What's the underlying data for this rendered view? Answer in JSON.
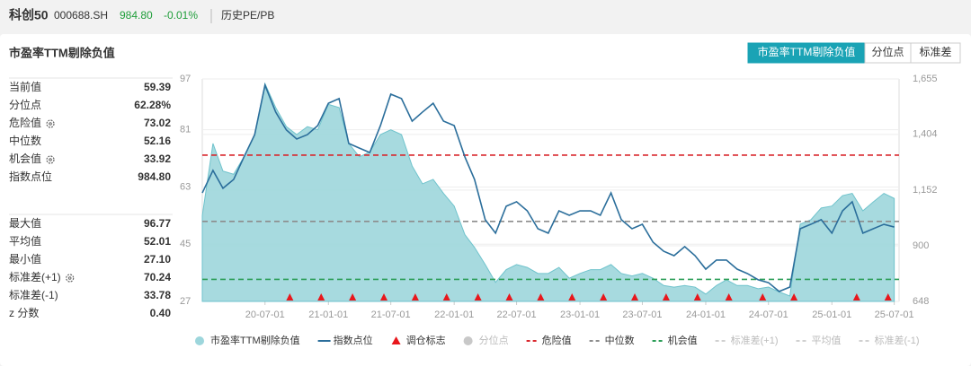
{
  "header": {
    "name": "科创50",
    "code": "000688.SH",
    "price": "984.80",
    "change": "-0.01%",
    "section": "历史PE/PB"
  },
  "card_title": "市盈率TTM剔除负值",
  "tabs": [
    {
      "label": "市盈率TTM剔除负值",
      "active": true
    },
    {
      "label": "分位点",
      "active": false
    },
    {
      "label": "标准差",
      "active": false
    }
  ],
  "stats": [
    [
      {
        "name": "当前值",
        "value": 59.39
      },
      {
        "name": "分位点",
        "value": 62.28,
        "value_label": "62.28%"
      },
      {
        "name": "危险值",
        "value": 73.02,
        "gear": true,
        "color": "#d9262c"
      },
      {
        "name": "中位数",
        "value": 52.16,
        "color": "#8c8c8c"
      },
      {
        "name": "机会值",
        "value": 33.92,
        "gear": true,
        "color": "#2a9d56"
      },
      {
        "name": "指数点位",
        "value": 984.8,
        "value_label": "984.80"
      }
    ],
    [
      {
        "name": "最大值",
        "value": 96.77
      },
      {
        "name": "平均值",
        "value": 52.01
      },
      {
        "name": "最小值",
        "value": 27.1,
        "value_label": "27.10"
      },
      {
        "name": "标准差(+1)",
        "value": 70.24,
        "gear": true
      },
      {
        "name": "标准差(-1)",
        "value": 33.78
      },
      {
        "name": "z 分数",
        "value": 0.4,
        "value_label": "0.40"
      }
    ]
  ],
  "chart_data": {
    "type": "combo",
    "x": [
      "20-01-01",
      "20-02-01",
      "20-03-01",
      "20-04-01",
      "20-05-01",
      "20-06-01",
      "20-07-01",
      "20-08-01",
      "20-09-01",
      "20-10-01",
      "20-11-01",
      "20-12-01",
      "21-01-01",
      "21-02-01",
      "21-03-01",
      "21-04-01",
      "21-05-01",
      "21-06-01",
      "21-07-01",
      "21-08-01",
      "21-09-01",
      "21-10-01",
      "21-11-01",
      "21-12-01",
      "22-01-01",
      "22-02-01",
      "22-03-01",
      "22-04-01",
      "22-05-01",
      "22-06-01",
      "22-07-01",
      "22-08-01",
      "22-09-01",
      "22-10-01",
      "22-11-01",
      "22-12-01",
      "23-01-01",
      "23-02-01",
      "23-03-01",
      "23-04-01",
      "23-05-01",
      "23-06-01",
      "23-07-01",
      "23-08-01",
      "23-09-01",
      "23-10-01",
      "23-11-01",
      "23-12-01",
      "24-01-01",
      "24-02-01",
      "24-03-01",
      "24-04-01",
      "24-05-01",
      "24-06-01",
      "24-07-01",
      "24-08-01",
      "24-09-01",
      "24-10-01",
      "24-11-01",
      "24-12-01",
      "25-01-01",
      "25-02-01",
      "25-03-01",
      "25-04-01",
      "25-05-01",
      "25-06-01",
      "25-07-01"
    ],
    "series": [
      {
        "name": "市盈率TTM剔除负值",
        "type": "area",
        "color": "#9dd6dc",
        "values": [
          54,
          76.7,
          68,
          67,
          72.5,
          79.5,
          95.5,
          88,
          82,
          79.5,
          82,
          81,
          89,
          88,
          76.7,
          72.5,
          74,
          79.5,
          81,
          79.5,
          69.6,
          64,
          65.4,
          61,
          57,
          48,
          44,
          38.6,
          33,
          37,
          38.6,
          37.7,
          35.8,
          35.8,
          37.7,
          34.3,
          35.8,
          37,
          37,
          38.6,
          35.8,
          35,
          35.8,
          34.3,
          32,
          31.5,
          32,
          31.5,
          29.3,
          32,
          33.8,
          32,
          32,
          31,
          31.5,
          30,
          28.7,
          51.3,
          52.7,
          56.4,
          57,
          60.3,
          61,
          55.5,
          58.3,
          61,
          59.39
        ]
      },
      {
        "name": "指数点位",
        "type": "line",
        "color": "#2b6e9b",
        "axis": "y2",
        "values": [
          1139,
          1241,
          1160,
          1200,
          1302,
          1403,
          1627,
          1505,
          1424,
          1383,
          1403,
          1444,
          1545,
          1566,
          1363,
          1342,
          1322,
          1444,
          1586,
          1566,
          1464,
          1505,
          1545,
          1464,
          1444,
          1302,
          1200,
          1018,
          957,
          1079,
          1099,
          1058,
          977,
          957,
          1058,
          1038,
          1058,
          1058,
          1038,
          1139,
          1018,
          977,
          997,
          916,
          875,
          855,
          896,
          855,
          794,
          835,
          835,
          794,
          774,
          746,
          733,
          693,
          713,
          977,
          997,
          1018,
          957,
          1058,
          1099,
          957,
          977,
          997,
          984.8
        ]
      }
    ],
    "rebalance": {
      "name": "调仓标志",
      "color": "#e8171c",
      "x": [
        "20-09-11",
        "20-12-11",
        "21-03-12",
        "21-06-11",
        "21-09-10",
        "21-12-10",
        "22-03-11",
        "22-06-10",
        "22-09-09",
        "22-12-09",
        "23-03-10",
        "23-06-09",
        "23-09-08",
        "23-12-08",
        "24-03-08",
        "24-06-14",
        "24-09-13",
        "25-03-14",
        "25-06-13"
      ]
    },
    "xlim": [
      "20-01-01",
      "25-07-15"
    ],
    "xticks": [
      "20-07-01",
      "21-01-01",
      "21-07-01",
      "22-01-01",
      "22-07-01",
      "23-01-01",
      "23-07-01",
      "24-01-01",
      "24-07-01",
      "25-01-01",
      "25-07-01"
    ],
    "ylim": [
      27,
      97
    ],
    "yticks": [
      27,
      45,
      63,
      81,
      97
    ],
    "y2lim": [
      648,
      1655
    ],
    "y2ticks": [
      648,
      {
        "value": 900,
        "label": "900"
      },
      {
        "value": 1152,
        "label": "1,152"
      },
      {
        "value": 1404,
        "label": "1,404"
      },
      {
        "value": 1655,
        "label": "1,655"
      }
    ],
    "grid": true,
    "reference_legend": [
      {
        "name": "分位点",
        "style": "dot",
        "color": "#c8c8c8",
        "active": false
      },
      {
        "name": "危险值",
        "style": "dash",
        "color": "#d9262c",
        "active": true
      },
      {
        "name": "中位数",
        "style": "dash",
        "color": "#8c8c8c",
        "active": true
      },
      {
        "name": "机会值",
        "style": "dash",
        "color": "#2a9d56",
        "active": true
      },
      {
        "name": "标准差(+1)",
        "style": "dash",
        "color": "#d0d0d0",
        "active": false
      },
      {
        "name": "平均值",
        "style": "dash",
        "color": "#d0d0d0",
        "active": false
      },
      {
        "name": "标准差(-1)",
        "style": "dash",
        "color": "#d0d0d0",
        "active": false
      }
    ]
  }
}
